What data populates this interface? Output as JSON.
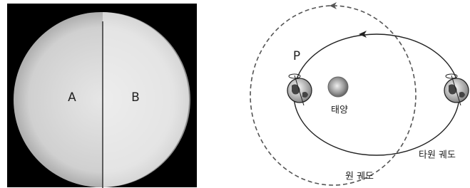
{
  "left_panel": {
    "labels": [
      "A",
      "B"
    ]
  },
  "right_panel": {
    "point_label": "P",
    "sun_label": "태양",
    "ellipse_orbit_label": "타원 궤도",
    "circle_orbit_label": "원 궤도"
  }
}
